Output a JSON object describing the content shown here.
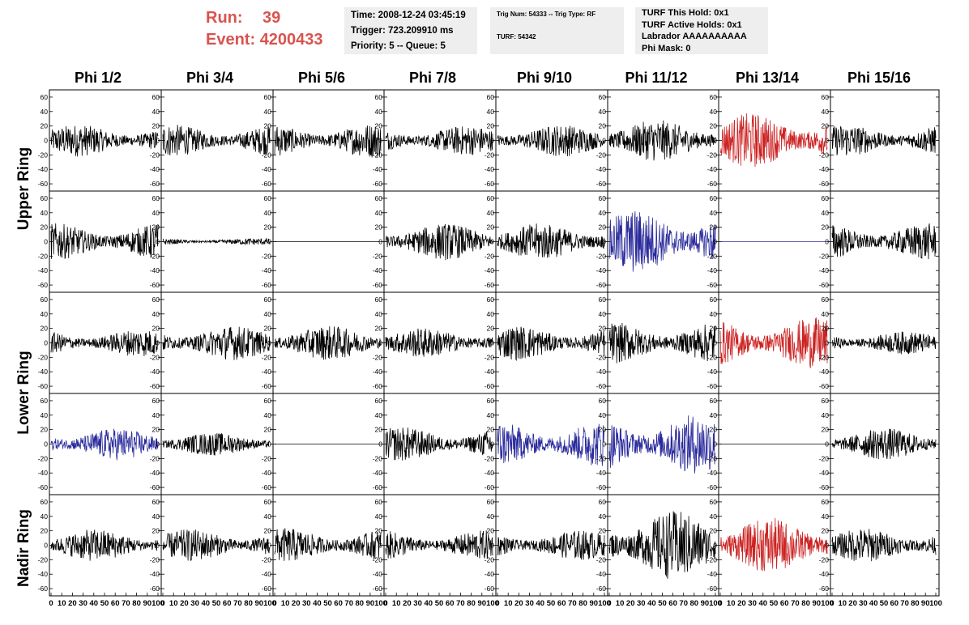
{
  "header": {
    "run_label": "Run:",
    "run_value": "39",
    "event_label": "Event:",
    "event_value": "4200433",
    "box1": {
      "line1": "Time: 2008-12-24 03:45:19",
      "line2": "Trigger: 723.209910 ms",
      "line3": "Priority: 5 -- Queue: 5"
    },
    "box2": {
      "line1": "Trig Num: 54333 -- Trig Type: RF",
      "line2": "TURF: 54342"
    },
    "box3": {
      "line1": "TURF This Hold: 0x1",
      "line2": "TURF Active Holds: 0x1",
      "line3": "Labrador AAAAAAAAAA",
      "line4": "Phi Mask: 0"
    }
  },
  "columns": [
    "Phi 1/2",
    "Phi 3/4",
    "Phi 5/6",
    "Phi 7/8",
    "Phi 9/10",
    "Phi 11/12",
    "Phi 13/14",
    "Phi 15/16"
  ],
  "row_labels": [
    "Upper Ring",
    "Lower Ring",
    "Nadir Ring"
  ],
  "colors": {
    "black": "#000000",
    "red": "#cc2222",
    "blue": "#2a2a9c",
    "header_red": "#d9534f"
  },
  "chart_data": {
    "type": "line",
    "xlim": [
      0,
      100
    ],
    "ylim": [
      -70,
      70
    ],
    "y_ticks": [
      -60,
      -40,
      -20,
      0,
      20,
      40,
      60
    ],
    "x_tick_labels": [
      "0",
      "10",
      "20",
      "30",
      "40",
      "50",
      "60",
      "70",
      "80",
      "90",
      "100"
    ],
    "panels": [
      [
        {
          "color": "black",
          "amp": 14
        },
        {
          "color": "black",
          "amp": 14
        },
        {
          "color": "black",
          "amp": 15
        },
        {
          "color": "black",
          "amp": 13
        },
        {
          "color": "black",
          "amp": 14
        },
        {
          "color": "black",
          "amp": 18
        },
        {
          "color": "red",
          "amp": 24
        },
        {
          "color": "black",
          "amp": 14
        }
      ],
      [
        {
          "color": "black",
          "amp": 16
        },
        {
          "color": "black",
          "amp": 3
        },
        {
          "color": "black",
          "amp": 0
        },
        {
          "color": "black",
          "amp": 16
        },
        {
          "color": "black",
          "amp": 16
        },
        {
          "color": "blue",
          "amp": 28
        },
        {
          "color": "blue",
          "amp": 0
        },
        {
          "color": "black",
          "amp": 16
        }
      ],
      [
        {
          "color": "black",
          "amp": 12
        },
        {
          "color": "black",
          "amp": 15
        },
        {
          "color": "black",
          "amp": 15
        },
        {
          "color": "black",
          "amp": 13
        },
        {
          "color": "black",
          "amp": 15
        },
        {
          "color": "black",
          "amp": 18
        },
        {
          "color": "red",
          "amp": 22
        },
        {
          "color": "black",
          "amp": 10
        }
      ],
      [
        {
          "color": "blue",
          "amp": 14
        },
        {
          "color": "black",
          "amp": 10
        },
        {
          "color": "black",
          "amp": 0
        },
        {
          "color": "black",
          "amp": 15
        },
        {
          "color": "blue",
          "amp": 20
        },
        {
          "color": "blue",
          "amp": 26
        },
        {
          "color": "black",
          "amp": 0
        },
        {
          "color": "black",
          "amp": 14
        }
      ],
      [
        {
          "color": "black",
          "amp": 14
        },
        {
          "color": "black",
          "amp": 14
        },
        {
          "color": "black",
          "amp": 15
        },
        {
          "color": "black",
          "amp": 13
        },
        {
          "color": "black",
          "amp": 13
        },
        {
          "color": "black",
          "amp": 30
        },
        {
          "color": "red",
          "amp": 24
        },
        {
          "color": "black",
          "amp": 15
        }
      ]
    ]
  }
}
